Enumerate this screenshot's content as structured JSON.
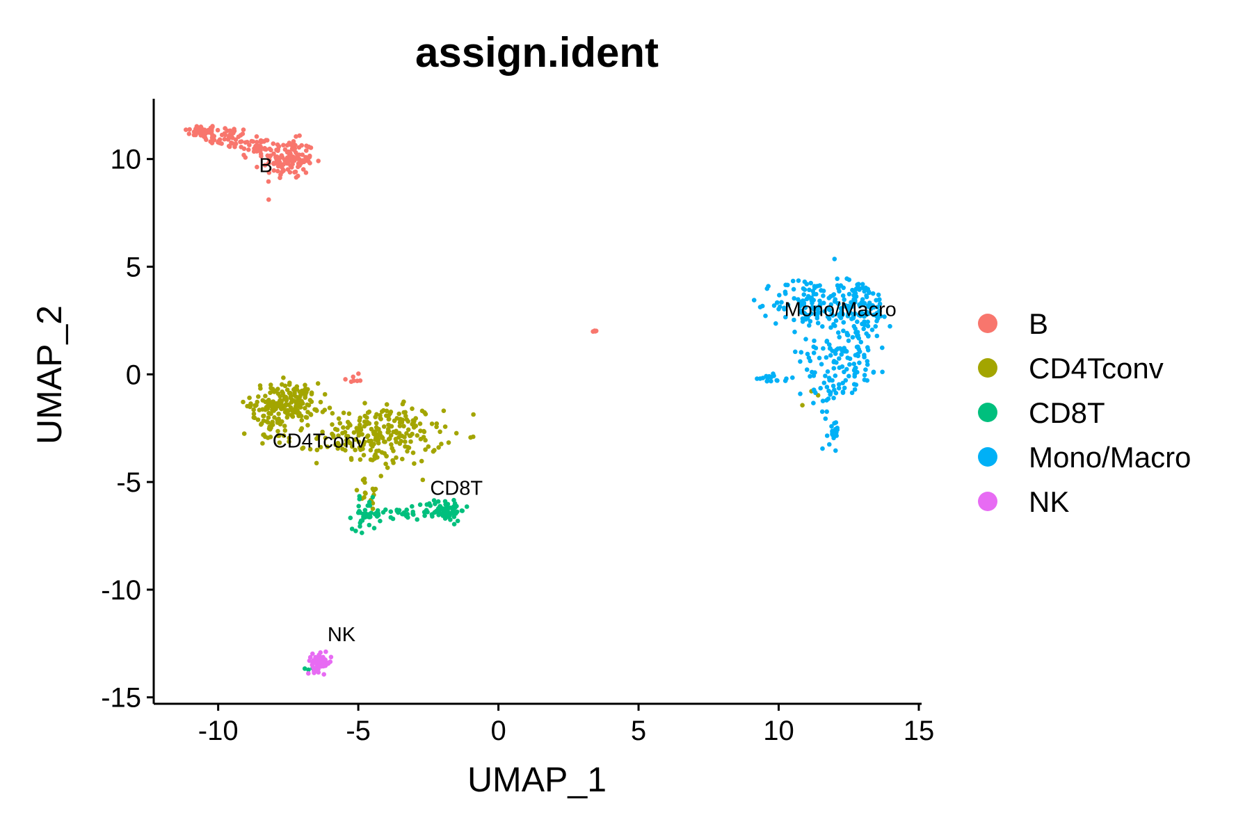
{
  "chart_data": {
    "type": "scatter",
    "title": "assign.ident",
    "xlabel": "UMAP_1",
    "ylabel": "UMAP_2",
    "xlim": [
      -12.3,
      15.1
    ],
    "ylim": [
      -15.3,
      12.8
    ],
    "xticks": [
      -10,
      -5,
      0,
      5,
      10,
      15
    ],
    "yticks": [
      10,
      5,
      0,
      -5,
      -10,
      -15
    ],
    "xtick_labels": [
      "-10",
      "-5",
      "0",
      "5",
      "10",
      "15"
    ],
    "ytick_labels": [
      "10",
      "5",
      "0",
      "-5",
      "-10",
      "-15"
    ],
    "grid": false,
    "legend_position": "right",
    "series": [
      {
        "name": "B",
        "color": "#F8766D",
        "label_pos": [
          -8.3,
          9.4
        ],
        "clusters": [
          {
            "cx": -10.6,
            "cy": 11.3,
            "sx": 0.3,
            "sy": 0.15,
            "n": 40
          },
          {
            "cx": -9.7,
            "cy": 11.0,
            "sx": 0.4,
            "sy": 0.25,
            "n": 45
          },
          {
            "cx": -8.6,
            "cy": 10.6,
            "sx": 0.4,
            "sy": 0.3,
            "n": 40
          },
          {
            "cx": -7.5,
            "cy": 10.0,
            "sx": 0.45,
            "sy": 0.45,
            "n": 130
          },
          {
            "cx": -5.2,
            "cy": -0.2,
            "sx": 0.15,
            "sy": 0.1,
            "n": 7
          },
          {
            "cx": 3.45,
            "cy": 2.0,
            "sx": 0.06,
            "sy": 0.04,
            "n": 6
          }
        ]
      },
      {
        "name": "CD4Tconv",
        "color": "#A3A500",
        "label_pos": [
          -6.4,
          -3.4
        ],
        "clusters": [
          {
            "cx": -7.6,
            "cy": -1.3,
            "sx": 0.6,
            "sy": 0.45,
            "n": 170
          },
          {
            "cx": -7.9,
            "cy": -2.4,
            "sx": 0.5,
            "sy": 0.5,
            "n": 50
          },
          {
            "cx": -4.2,
            "cy": -2.8,
            "sx": 1.1,
            "sy": 0.7,
            "n": 240
          },
          {
            "cx": -4.6,
            "cy": -5.6,
            "sx": 0.35,
            "sy": 0.4,
            "n": 15
          },
          {
            "cx": 11.2,
            "cy": -0.8,
            "sx": 0.2,
            "sy": 0.3,
            "n": 3
          }
        ]
      },
      {
        "name": "CD8T",
        "color": "#00BF7D",
        "label_pos": [
          -1.5,
          -5.6
        ],
        "clusters": [
          {
            "cx": -4.7,
            "cy": -6.5,
            "sx": 0.25,
            "sy": 0.35,
            "n": 40
          },
          {
            "cx": -3.6,
            "cy": -6.5,
            "sx": 0.55,
            "sy": 0.15,
            "n": 30
          },
          {
            "cx": -1.9,
            "cy": -6.3,
            "sx": 0.35,
            "sy": 0.25,
            "n": 70
          },
          {
            "cx": -6.6,
            "cy": -13.6,
            "sx": 0.2,
            "sy": 0.15,
            "n": 6
          }
        ]
      },
      {
        "name": "Mono/Macro",
        "color": "#00B0F6",
        "label_pos": [
          12.2,
          2.7
        ],
        "clusters": [
          {
            "cx": 11.0,
            "cy": 3.3,
            "sx": 0.6,
            "sy": 0.6,
            "n": 100
          },
          {
            "cx": 12.8,
            "cy": 3.2,
            "sx": 0.6,
            "sy": 0.6,
            "n": 120
          },
          {
            "cx": 12.4,
            "cy": 1.0,
            "sx": 0.8,
            "sy": 0.8,
            "n": 110
          },
          {
            "cx": 11.8,
            "cy": -0.7,
            "sx": 0.3,
            "sy": 0.5,
            "n": 30
          },
          {
            "cx": 11.95,
            "cy": -2.5,
            "sx": 0.12,
            "sy": 0.45,
            "n": 18
          },
          {
            "cx": 9.9,
            "cy": -0.2,
            "sx": 0.35,
            "sy": 0.1,
            "n": 16
          }
        ]
      },
      {
        "name": "NK",
        "color": "#E76BF3",
        "label_pos": [
          -5.6,
          -12.4
        ],
        "clusters": [
          {
            "cx": -6.4,
            "cy": -13.4,
            "sx": 0.22,
            "sy": 0.2,
            "n": 55
          }
        ]
      }
    ]
  }
}
